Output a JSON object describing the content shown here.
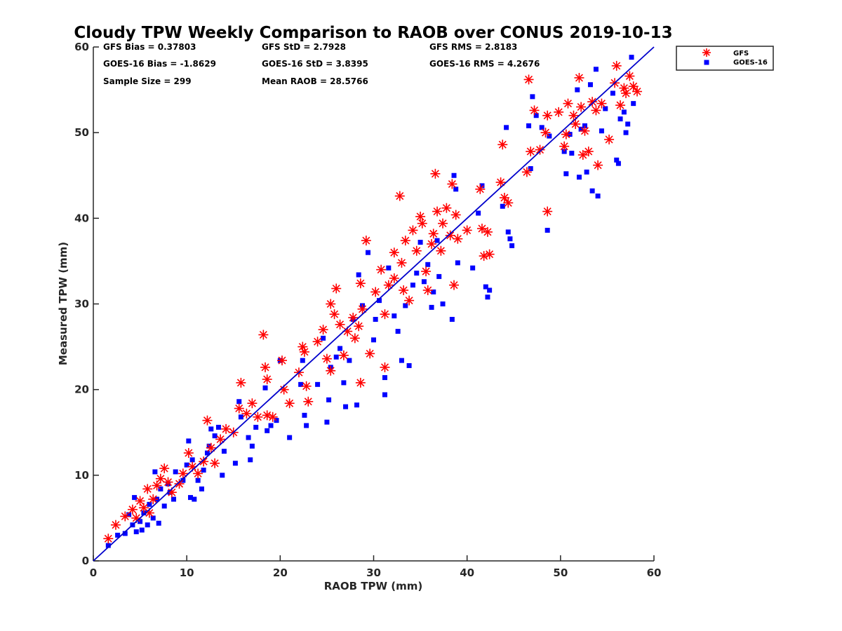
{
  "chart_data": {
    "type": "scatter",
    "title": "Cloudy TPW Weekly Comparison to RAOB over CONUS 2019-10-13",
    "xlabel": "RAOB TPW (mm)",
    "ylabel": "Measured TPW (mm)",
    "xlim": [
      0,
      60
    ],
    "ylim": [
      0,
      60
    ],
    "xticks": [
      0,
      10,
      20,
      30,
      40,
      50,
      60
    ],
    "yticks": [
      0,
      10,
      20,
      30,
      40,
      50,
      60
    ],
    "xtick_labels": [
      "0",
      "10",
      "20",
      "30",
      "40",
      "50",
      "60"
    ],
    "ytick_labels": [
      "0",
      "10",
      "20",
      "30",
      "40",
      "50",
      "60"
    ],
    "grid": false,
    "legend_position": "top-right-outside",
    "reference_line": {
      "name": "1:1 line",
      "x": [
        0,
        60
      ],
      "y": [
        0,
        60
      ],
      "color": "#0000cc"
    },
    "stats": [
      [
        "GFS Bias = 0.37803",
        "GFS StD = 2.7928",
        "GFS RMS = 2.8183"
      ],
      [
        "GOES-16 Bias = -1.8629",
        "GOES-16 StD = 3.8395",
        "GOES-16 RMS = 4.2676"
      ],
      [
        "Sample Size = 299",
        "Mean RAOB = 28.5766",
        ""
      ]
    ],
    "series": [
      {
        "name": "GFS",
        "marker": "asterisk",
        "color": "#ff0000",
        "points": [
          [
            1.6,
            2.6
          ],
          [
            2.4,
            4.2
          ],
          [
            3.4,
            5.2
          ],
          [
            4.2,
            6.0
          ],
          [
            4.6,
            5.0
          ],
          [
            5.0,
            7.0
          ],
          [
            5.4,
            6.2
          ],
          [
            5.8,
            8.4
          ],
          [
            6.0,
            5.6
          ],
          [
            6.4,
            7.2
          ],
          [
            6.8,
            8.8
          ],
          [
            7.2,
            9.6
          ],
          [
            7.6,
            10.8
          ],
          [
            8.0,
            9.2
          ],
          [
            8.4,
            8.0
          ],
          [
            9.2,
            9.0
          ],
          [
            9.6,
            10.2
          ],
          [
            10.2,
            12.6
          ],
          [
            10.6,
            11.0
          ],
          [
            11.2,
            10.2
          ],
          [
            11.8,
            11.6
          ],
          [
            12.2,
            16.4
          ],
          [
            12.6,
            13.2
          ],
          [
            13.0,
            11.4
          ],
          [
            13.6,
            14.2
          ],
          [
            14.2,
            15.4
          ],
          [
            15.0,
            15.0
          ],
          [
            15.6,
            17.8
          ],
          [
            15.8,
            20.8
          ],
          [
            16.4,
            17.2
          ],
          [
            17.0,
            18.4
          ],
          [
            17.6,
            16.8
          ],
          [
            18.2,
            26.4
          ],
          [
            18.4,
            22.6
          ],
          [
            18.6,
            17.0
          ],
          [
            18.6,
            21.2
          ],
          [
            19.2,
            16.8
          ],
          [
            20.2,
            23.4
          ],
          [
            20.4,
            20.0
          ],
          [
            21.0,
            18.4
          ],
          [
            22.0,
            22.0
          ],
          [
            22.4,
            25.0
          ],
          [
            22.6,
            24.4
          ],
          [
            22.8,
            20.4
          ],
          [
            23.0,
            18.6
          ],
          [
            24.0,
            25.6
          ],
          [
            24.6,
            27.0
          ],
          [
            25.0,
            23.6
          ],
          [
            25.4,
            22.2
          ],
          [
            25.4,
            30.0
          ],
          [
            25.8,
            28.8
          ],
          [
            26.0,
            31.8
          ],
          [
            26.4,
            27.6
          ],
          [
            26.8,
            24.0
          ],
          [
            27.2,
            26.8
          ],
          [
            27.8,
            28.4
          ],
          [
            28.0,
            26.0
          ],
          [
            28.4,
            27.4
          ],
          [
            28.6,
            32.4
          ],
          [
            28.6,
            20.8
          ],
          [
            28.8,
            29.4
          ],
          [
            29.2,
            37.4
          ],
          [
            29.6,
            24.2
          ],
          [
            30.2,
            31.4
          ],
          [
            30.8,
            34.0
          ],
          [
            31.2,
            28.8
          ],
          [
            31.2,
            22.6
          ],
          [
            31.6,
            32.2
          ],
          [
            32.2,
            36.0
          ],
          [
            32.2,
            33.0
          ],
          [
            32.8,
            42.6
          ],
          [
            33.0,
            34.8
          ],
          [
            33.2,
            31.6
          ],
          [
            33.4,
            37.4
          ],
          [
            33.8,
            30.4
          ],
          [
            34.2,
            38.6
          ],
          [
            34.6,
            36.2
          ],
          [
            35.0,
            40.2
          ],
          [
            35.2,
            39.4
          ],
          [
            35.6,
            33.8
          ],
          [
            35.8,
            31.6
          ],
          [
            36.2,
            37.0
          ],
          [
            36.4,
            38.2
          ],
          [
            36.6,
            45.2
          ],
          [
            36.8,
            40.8
          ],
          [
            37.2,
            36.2
          ],
          [
            37.4,
            39.4
          ],
          [
            37.8,
            41.2
          ],
          [
            38.2,
            38.0
          ],
          [
            38.4,
            44.0
          ],
          [
            38.6,
            32.2
          ],
          [
            38.8,
            40.4
          ],
          [
            39.0,
            37.6
          ],
          [
            40.0,
            38.6
          ],
          [
            41.4,
            43.4
          ],
          [
            41.6,
            38.8
          ],
          [
            41.8,
            35.6
          ],
          [
            42.2,
            38.4
          ],
          [
            42.4,
            35.8
          ],
          [
            43.6,
            44.2
          ],
          [
            43.8,
            48.6
          ],
          [
            44.0,
            42.4
          ],
          [
            44.4,
            41.8
          ],
          [
            46.4,
            45.4
          ],
          [
            46.6,
            56.2
          ],
          [
            46.8,
            47.8
          ],
          [
            47.2,
            52.6
          ],
          [
            47.8,
            48.0
          ],
          [
            48.4,
            50.0
          ],
          [
            48.6,
            40.8
          ],
          [
            48.6,
            52.0
          ],
          [
            49.8,
            52.4
          ],
          [
            50.4,
            48.4
          ],
          [
            50.6,
            49.8
          ],
          [
            50.8,
            53.4
          ],
          [
            51.4,
            52.0
          ],
          [
            51.6,
            51.0
          ],
          [
            52.0,
            56.4
          ],
          [
            52.2,
            53.0
          ],
          [
            52.4,
            47.4
          ],
          [
            52.6,
            50.2
          ],
          [
            53.0,
            47.8
          ],
          [
            53.4,
            53.6
          ],
          [
            53.8,
            52.6
          ],
          [
            54.0,
            46.2
          ],
          [
            54.4,
            53.4
          ],
          [
            55.2,
            49.2
          ],
          [
            55.8,
            55.8
          ],
          [
            56.0,
            57.8
          ],
          [
            56.4,
            53.2
          ],
          [
            56.8,
            55.2
          ],
          [
            57.0,
            54.6
          ],
          [
            57.4,
            56.6
          ],
          [
            57.8,
            55.4
          ],
          [
            58.2,
            54.8
          ]
        ]
      },
      {
        "name": "GOES-16",
        "marker": "square",
        "color": "#0000ff",
        "points": [
          [
            1.6,
            1.8
          ],
          [
            2.6,
            3.0
          ],
          [
            3.4,
            3.2
          ],
          [
            3.8,
            5.4
          ],
          [
            4.2,
            4.2
          ],
          [
            4.4,
            7.4
          ],
          [
            4.6,
            3.4
          ],
          [
            5.0,
            4.6
          ],
          [
            5.2,
            3.6
          ],
          [
            5.4,
            5.6
          ],
          [
            5.8,
            4.2
          ],
          [
            6.0,
            6.6
          ],
          [
            6.4,
            5.0
          ],
          [
            6.6,
            10.4
          ],
          [
            6.8,
            7.2
          ],
          [
            7.0,
            4.4
          ],
          [
            7.2,
            8.4
          ],
          [
            7.6,
            6.4
          ],
          [
            8.0,
            9.0
          ],
          [
            8.2,
            8.0
          ],
          [
            8.6,
            7.2
          ],
          [
            8.8,
            10.4
          ],
          [
            9.6,
            9.4
          ],
          [
            10.0,
            11.2
          ],
          [
            10.2,
            14.0
          ],
          [
            10.4,
            7.4
          ],
          [
            10.6,
            11.8
          ],
          [
            10.8,
            7.2
          ],
          [
            11.2,
            9.4
          ],
          [
            11.6,
            8.4
          ],
          [
            11.8,
            10.6
          ],
          [
            12.2,
            12.6
          ],
          [
            12.4,
            13.4
          ],
          [
            12.6,
            15.4
          ],
          [
            13.0,
            14.6
          ],
          [
            13.4,
            15.6
          ],
          [
            13.8,
            10.0
          ],
          [
            14.0,
            12.8
          ],
          [
            15.2,
            11.4
          ],
          [
            15.6,
            18.6
          ],
          [
            15.8,
            16.8
          ],
          [
            16.6,
            14.4
          ],
          [
            16.8,
            11.8
          ],
          [
            17.0,
            13.4
          ],
          [
            17.4,
            15.6
          ],
          [
            18.4,
            20.2
          ],
          [
            18.6,
            15.2
          ],
          [
            19.0,
            15.8
          ],
          [
            19.6,
            16.4
          ],
          [
            20.0,
            23.4
          ],
          [
            21.0,
            14.4
          ],
          [
            22.2,
            20.6
          ],
          [
            22.4,
            23.4
          ],
          [
            22.6,
            17.0
          ],
          [
            22.8,
            15.8
          ],
          [
            24.0,
            20.6
          ],
          [
            24.6,
            26.0
          ],
          [
            25.0,
            16.2
          ],
          [
            25.2,
            18.8
          ],
          [
            25.4,
            22.6
          ],
          [
            26.0,
            23.8
          ],
          [
            26.4,
            24.8
          ],
          [
            26.8,
            20.8
          ],
          [
            27.0,
            18.0
          ],
          [
            27.4,
            23.4
          ],
          [
            27.8,
            28.2
          ],
          [
            28.2,
            18.2
          ],
          [
            28.4,
            33.4
          ],
          [
            28.8,
            29.8
          ],
          [
            29.4,
            36.0
          ],
          [
            30.0,
            25.8
          ],
          [
            30.2,
            28.2
          ],
          [
            30.6,
            30.4
          ],
          [
            31.2,
            21.4
          ],
          [
            31.2,
            19.4
          ],
          [
            31.6,
            34.2
          ],
          [
            32.2,
            28.6
          ],
          [
            32.6,
            26.8
          ],
          [
            33.0,
            23.4
          ],
          [
            33.4,
            29.8
          ],
          [
            33.8,
            22.8
          ],
          [
            34.2,
            32.2
          ],
          [
            34.6,
            33.6
          ],
          [
            35.0,
            37.2
          ],
          [
            35.4,
            32.6
          ],
          [
            35.8,
            34.6
          ],
          [
            36.2,
            29.6
          ],
          [
            36.4,
            31.4
          ],
          [
            36.8,
            37.4
          ],
          [
            37.0,
            33.2
          ],
          [
            37.4,
            30.0
          ],
          [
            38.4,
            28.2
          ],
          [
            38.6,
            45.0
          ],
          [
            38.8,
            43.4
          ],
          [
            39.0,
            34.8
          ],
          [
            40.6,
            34.2
          ],
          [
            41.2,
            40.6
          ],
          [
            41.6,
            43.8
          ],
          [
            42.0,
            32.0
          ],
          [
            42.4,
            31.6
          ],
          [
            42.2,
            30.8
          ],
          [
            43.8,
            41.4
          ],
          [
            44.2,
            50.6
          ],
          [
            44.4,
            38.4
          ],
          [
            44.6,
            37.6
          ],
          [
            44.8,
            36.8
          ],
          [
            46.6,
            50.8
          ],
          [
            46.8,
            45.8
          ],
          [
            47.0,
            54.2
          ],
          [
            47.4,
            52.0
          ],
          [
            48.0,
            50.6
          ],
          [
            48.6,
            38.6
          ],
          [
            48.8,
            49.6
          ],
          [
            50.4,
            47.8
          ],
          [
            50.6,
            45.2
          ],
          [
            51.0,
            49.8
          ],
          [
            51.2,
            47.6
          ],
          [
            51.8,
            55.0
          ],
          [
            52.0,
            44.8
          ],
          [
            52.2,
            50.4
          ],
          [
            52.6,
            50.8
          ],
          [
            52.8,
            45.4
          ],
          [
            53.2,
            55.6
          ],
          [
            53.4,
            43.2
          ],
          [
            53.8,
            57.4
          ],
          [
            54.0,
            42.6
          ],
          [
            54.4,
            50.2
          ],
          [
            54.8,
            52.8
          ],
          [
            55.6,
            54.6
          ],
          [
            56.0,
            46.8
          ],
          [
            56.2,
            46.4
          ],
          [
            56.4,
            51.6
          ],
          [
            56.8,
            52.4
          ],
          [
            57.0,
            50.0
          ],
          [
            57.2,
            51.0
          ],
          [
            57.6,
            58.8
          ],
          [
            57.8,
            53.4
          ]
        ]
      }
    ]
  }
}
